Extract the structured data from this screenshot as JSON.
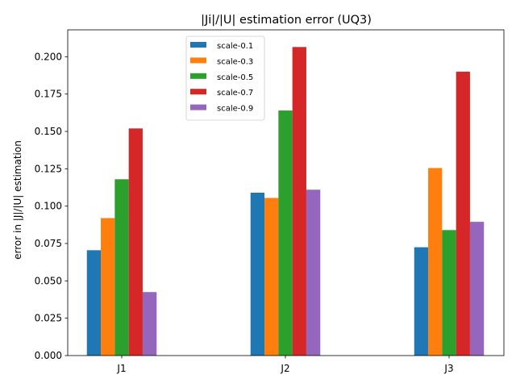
{
  "chart_data": {
    "type": "bar",
    "title": "|Ji|/|U| estimation error (UQ3)",
    "xlabel": "",
    "ylabel": "error in  |J|/|U| estimation",
    "categories": [
      "J1",
      "J2",
      "J3"
    ],
    "ylim": [
      0,
      0.218
    ],
    "yticks": [
      0.0,
      0.025,
      0.05,
      0.075,
      0.1,
      0.125,
      0.15,
      0.175,
      0.2
    ],
    "ytick_labels": [
      "0.000",
      "0.025",
      "0.050",
      "0.075",
      "0.100",
      "0.125",
      "0.150",
      "0.175",
      "0.200"
    ],
    "grid": false,
    "legend_position": "upper-center",
    "series": [
      {
        "name": "scale-0.1",
        "color": "#1f77b4",
        "values": [
          0.0705,
          0.109,
          0.0725
        ]
      },
      {
        "name": "scale-0.3",
        "color": "#ff7f0e",
        "values": [
          0.092,
          0.1055,
          0.1255
        ]
      },
      {
        "name": "scale-0.5",
        "color": "#2ca02c",
        "values": [
          0.118,
          0.164,
          0.084
        ]
      },
      {
        "name": "scale-0.7",
        "color": "#d62728",
        "values": [
          0.152,
          0.2065,
          0.19
        ]
      },
      {
        "name": "scale-0.9",
        "color": "#9467bd",
        "values": [
          0.0425,
          0.111,
          0.0895
        ]
      }
    ]
  }
}
